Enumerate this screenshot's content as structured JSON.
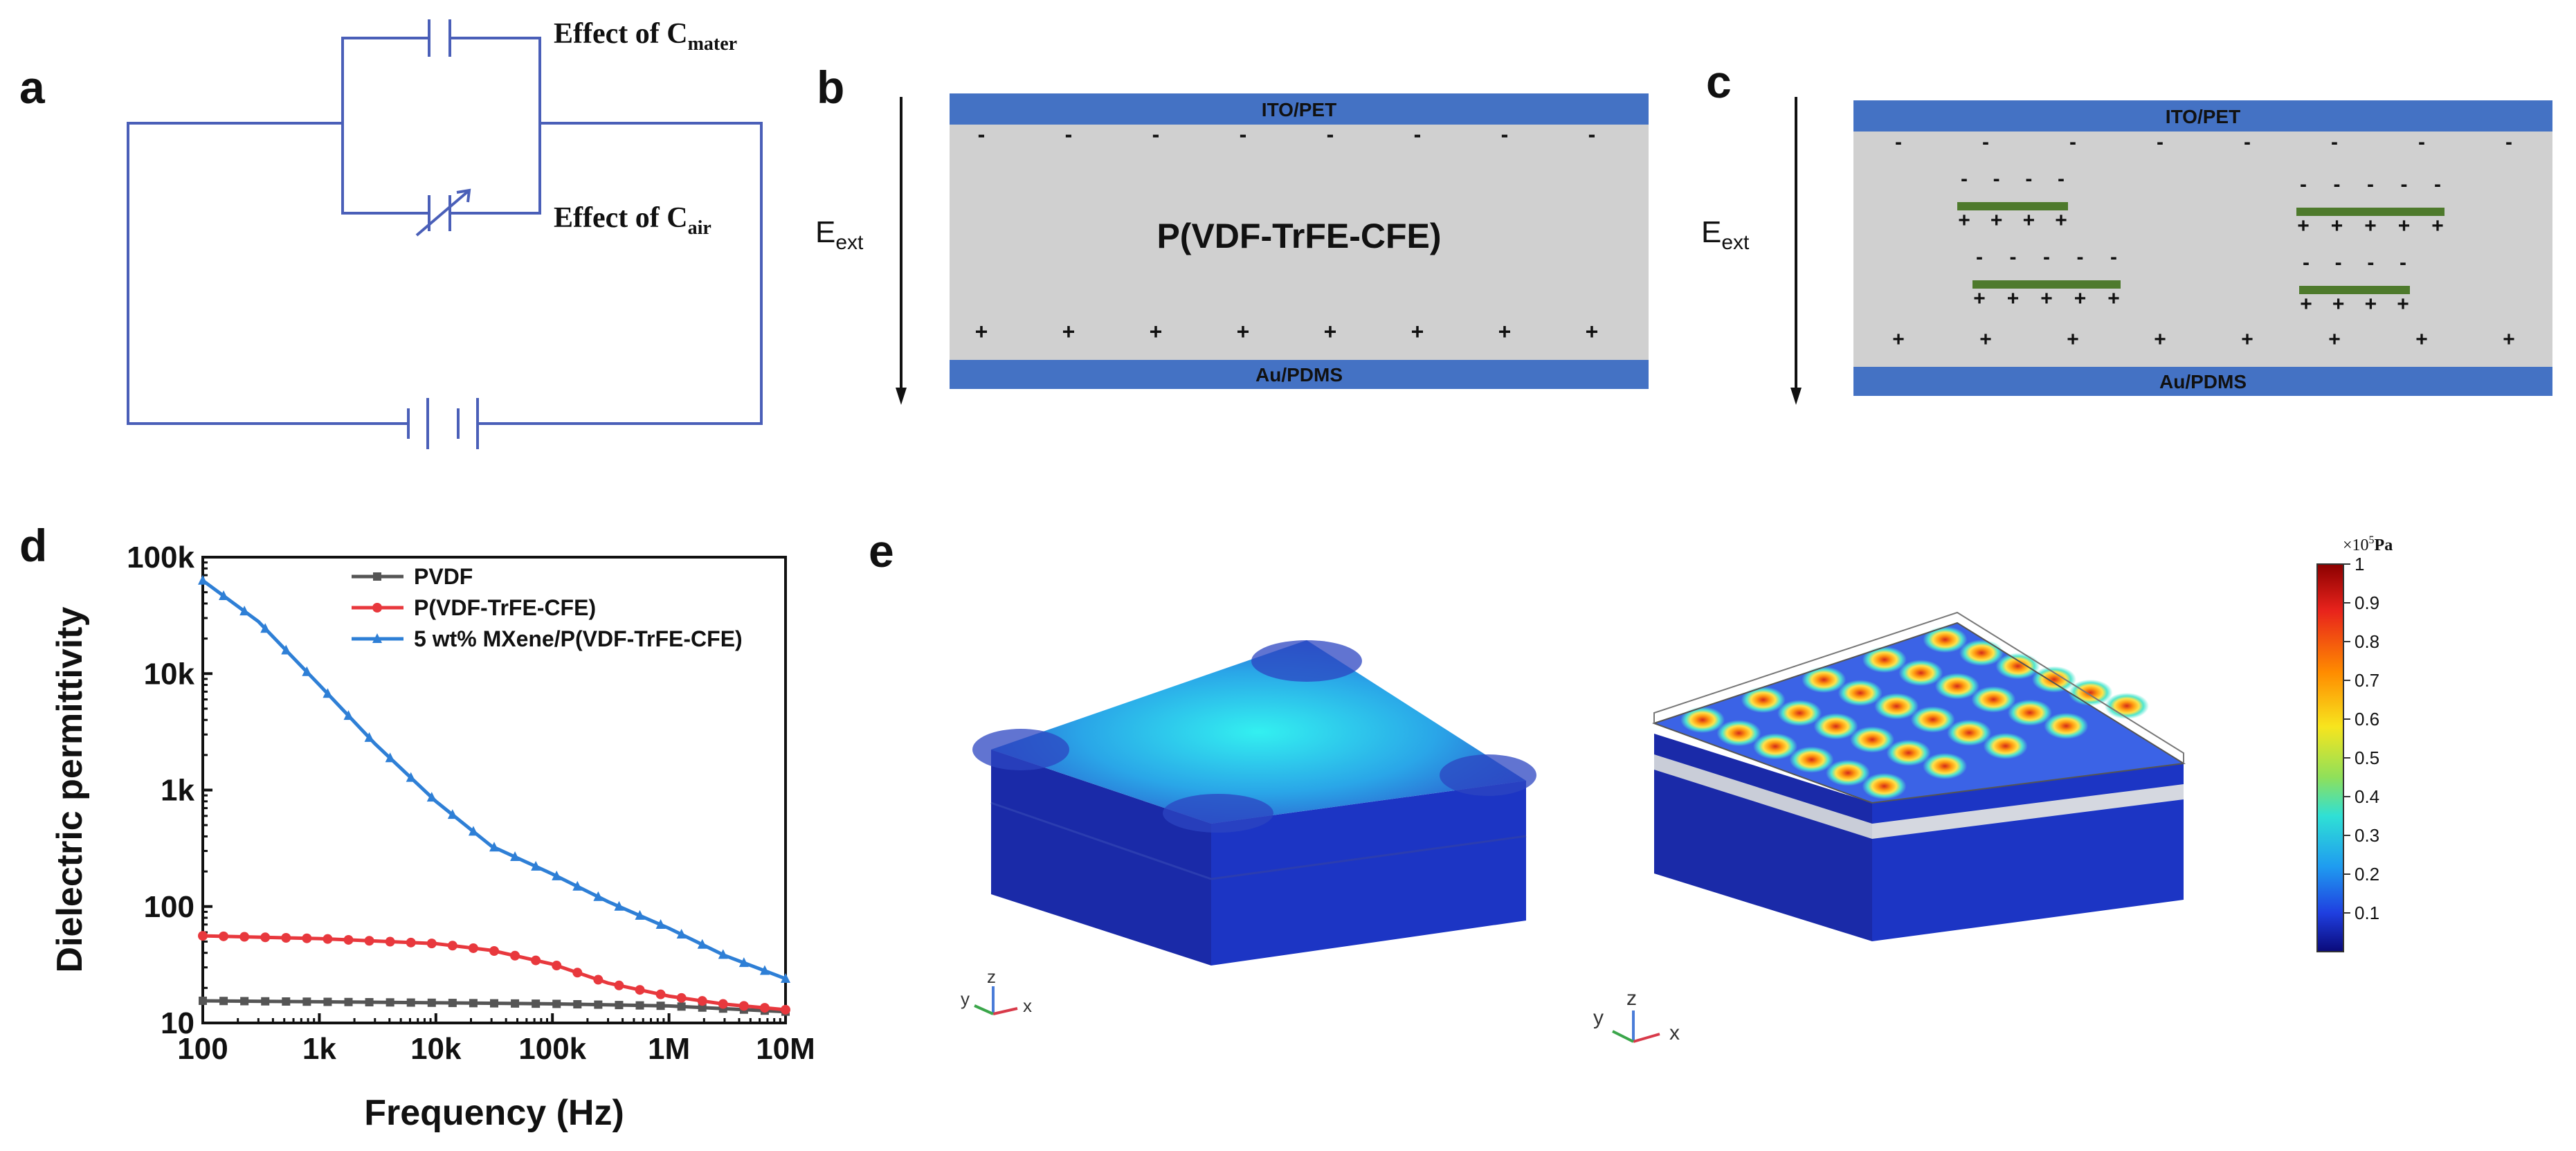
{
  "panels": {
    "a": {
      "label": "a",
      "effect_mater": {
        "prefix": "Effect of C",
        "sub": "mater"
      },
      "effect_air": {
        "prefix": "Effect of C",
        "sub": "air"
      }
    },
    "b": {
      "label": "b",
      "top_electrode": "ITO/PET",
      "bottom_electrode": "Au/PDMS",
      "material": "P(VDF-TrFE-CFE)",
      "field": {
        "main": "E",
        "sub": "ext"
      },
      "neg_charge": "-",
      "pos_charge": "+"
    },
    "c": {
      "label": "c",
      "top_electrode": "ITO/PET",
      "bottom_electrode": "Au/PDMS",
      "field": {
        "main": "E",
        "sub": "ext"
      },
      "neg_charge": "-",
      "pos_charge": "+"
    },
    "d": {
      "label": "d"
    },
    "e": {
      "label": "e",
      "colorbar": {
        "unit_prefix": "×10",
        "unit_exp": "5",
        "unit": "Pa",
        "ticks": [
          "1",
          "0.9",
          "0.8",
          "0.7",
          "0.6",
          "0.5",
          "0.4",
          "0.3",
          "0.2",
          "0.1"
        ]
      },
      "axes_labels": {
        "x": "x",
        "y": "y",
        "z": "z"
      }
    }
  },
  "chart_data": {
    "type": "line",
    "xlabel": "Frequency (Hz)",
    "ylabel": "Dielectric permittivity",
    "xscale": "log",
    "yscale": "log",
    "xlim": [
      100,
      10000000
    ],
    "ylim": [
      10,
      100000
    ],
    "xticks": [
      100,
      1000,
      10000,
      100000,
      1000000,
      10000000
    ],
    "xtick_labels": [
      "100",
      "1k",
      "10k",
      "100k",
      "1M",
      "10M"
    ],
    "yticks": [
      10,
      100,
      1000,
      10000,
      100000
    ],
    "ytick_labels": [
      "10",
      "100",
      "1k",
      "10k",
      "100k"
    ],
    "legend_position": "top-right",
    "series": [
      {
        "name": "PVDF",
        "color": "#555555",
        "marker": "square",
        "x": [
          100,
          1000,
          10000,
          100000,
          1000000,
          10000000
        ],
        "y": [
          15.5,
          15.2,
          14.9,
          14.6,
          14.0,
          12.5
        ]
      },
      {
        "name": "P(VDF-TrFE-CFE)",
        "color": "#e8383d",
        "marker": "circle",
        "x": [
          100,
          1000,
          10000,
          30000,
          100000,
          300000,
          1000000,
          3000000,
          10000000
        ],
        "y": [
          56,
          53,
          48,
          42,
          32,
          22,
          17,
          14.5,
          13
        ]
      },
      {
        "name": "5 wt% MXene/P(VDF-TrFE-CFE)",
        "color": "#2e7fd6",
        "marker": "triangle",
        "x": [
          100,
          300,
          1000,
          3000,
          10000,
          30000,
          100000,
          300000,
          1000000,
          3000000,
          10000000
        ],
        "y": [
          63000,
          28000,
          8000,
          2500,
          800,
          330,
          190,
          110,
          65,
          38,
          24
        ]
      }
    ]
  }
}
